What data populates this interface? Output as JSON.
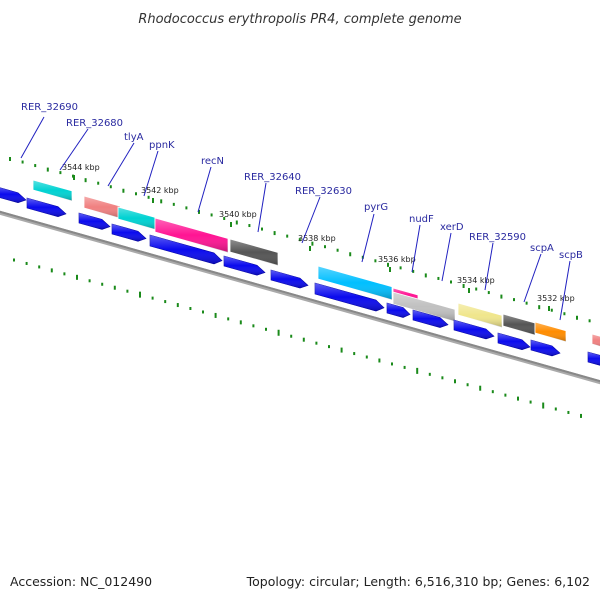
{
  "title": "Rhodococcus erythropolis PR4, complete genome",
  "footer": {
    "accession": "Accession: NC_012490",
    "summary": "Topology: circular; Length: 6,516,310 bp; Genes: 6,102"
  },
  "colors": {
    "forward_arrow": "#0a0aee",
    "backbone": "#888888",
    "gene_label": "#2a2aa0",
    "leader_line": "#2020c0",
    "gc_tick": "#1a8a1a"
  },
  "gene_labels": [
    {
      "name": "RER_32690"
    },
    {
      "name": "RER_32680"
    },
    {
      "name": "tlyA"
    },
    {
      "name": "ppnK"
    },
    {
      "name": "recN"
    },
    {
      "name": "RER_32640"
    },
    {
      "name": "RER_32630"
    },
    {
      "name": "pyrG"
    },
    {
      "name": "nudF"
    },
    {
      "name": "xerD"
    },
    {
      "name": "RER_32590"
    },
    {
      "name": "scpA"
    },
    {
      "name": "scpB"
    }
  ],
  "scale_labels": [
    "3544 kbp",
    "3542 kbp",
    "3540 kbp",
    "3538 kbp",
    "3536 kbp",
    "3534 kbp",
    "3532 kbp"
  ],
  "feature_colors": [
    "#00d2d2",
    "#f08080",
    "#00d2d2",
    "#ff1493",
    "#555555",
    "#00bfff",
    "#ff1493",
    "#c0c0c0",
    "#f0e68c",
    "#555555",
    "#ff8c00",
    "#f08080"
  ]
}
